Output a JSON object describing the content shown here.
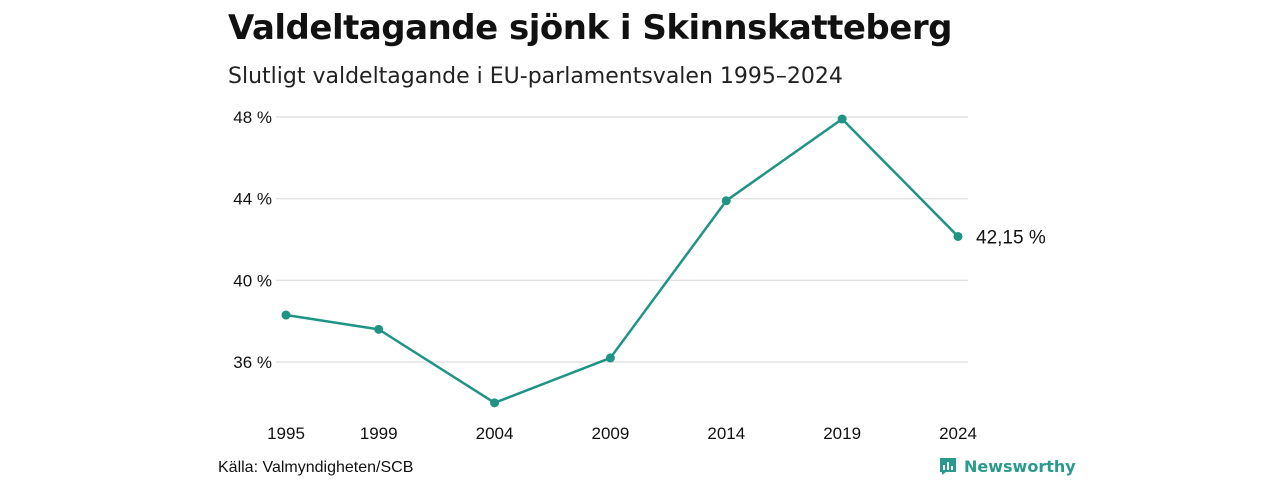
{
  "header": {
    "title": "Valdeltagande sjönk i Skinnskatteberg",
    "subtitle": "Slutligt valdeltagande i EU-parlamentsvalen 1995–2024"
  },
  "footer": {
    "source": "Källa: Valmyndigheten/SCB",
    "brand": "Newsworthy",
    "brand_icon": "bar-chart-icon"
  },
  "colors": {
    "line": "#1f9484",
    "grid": "#e2e2e2",
    "brand": "#2a9a8c"
  },
  "chart_data": {
    "type": "line",
    "title": "Valdeltagande sjönk i Skinnskatteberg",
    "subtitle": "Slutligt valdeltagande i EU-parlamentsvalen 1995–2024",
    "categories": [
      "1995",
      "1999",
      "2004",
      "2009",
      "2014",
      "2019",
      "2024"
    ],
    "x": [
      1995,
      1999,
      2004,
      2009,
      2014,
      2019,
      2024
    ],
    "series": [
      {
        "values": [
          38.3,
          37.6,
          34.0,
          36.2,
          43.9,
          47.9,
          42.15
        ]
      }
    ],
    "yticks": [
      36,
      40,
      44,
      48
    ],
    "ytick_labels": [
      "36 %",
      "40 %",
      "44 %",
      "48 %"
    ],
    "ylim": [
      33.6,
      48.6
    ],
    "grid": true,
    "end_label": "42,15 %"
  }
}
